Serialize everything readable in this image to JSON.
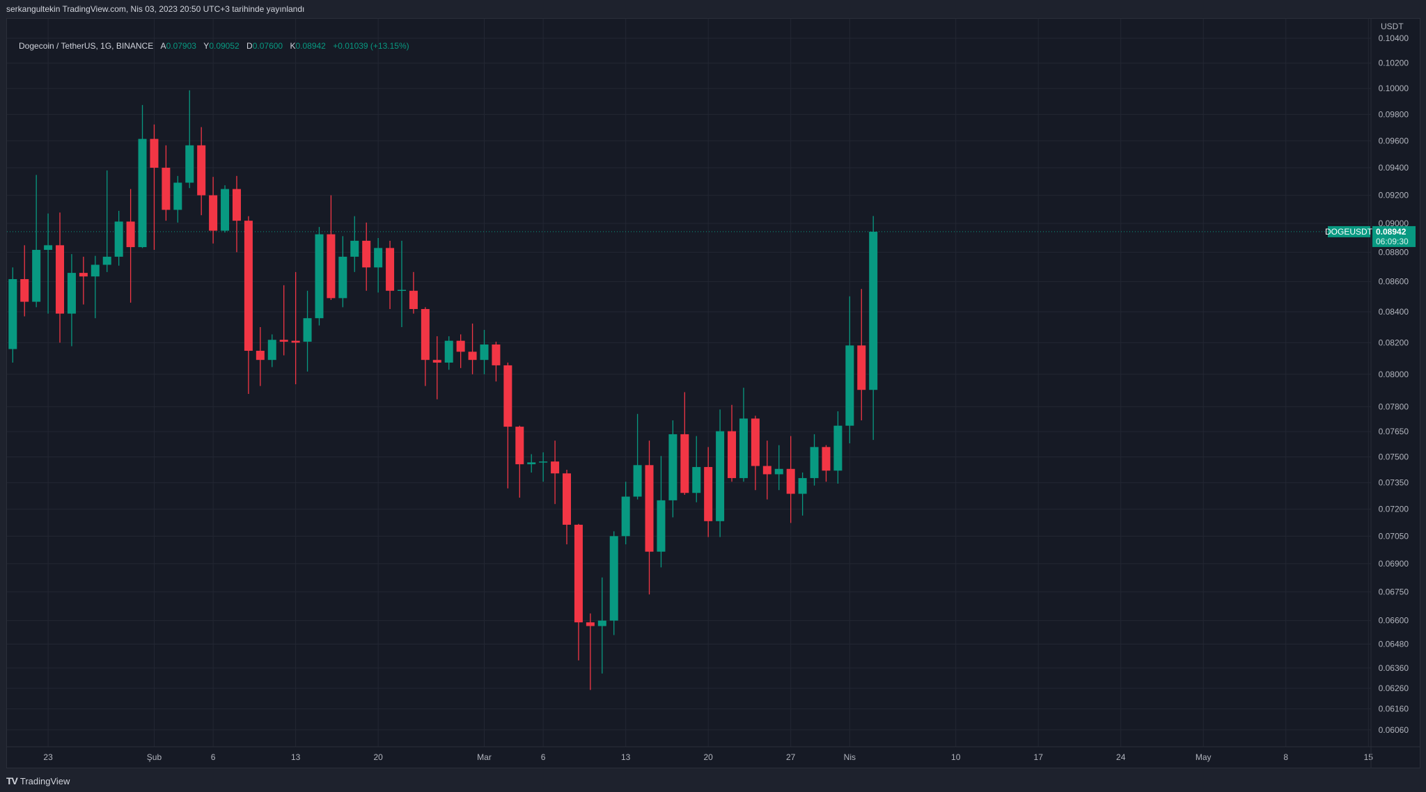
{
  "header": {
    "published": "serkangultekin TradingView.com, Nis 03, 2023 20:50 UTC+3 tarihinde yayınlandı"
  },
  "legend": {
    "symbol": "Dogecoin / TetherUS, 1G, BINANCE",
    "open_label": "A",
    "open": "0.07903",
    "high_label": "Y",
    "high": "0.09052",
    "low_label": "D",
    "low": "0.07600",
    "close_label": "K",
    "close": "0.08942",
    "change": "+0.01039 (+13.15%)"
  },
  "price_tag": {
    "symbol": "DOGEUSDT",
    "price": "0.08942",
    "countdown": "06:09:30"
  },
  "footer": {
    "logo_mark": "TV",
    "brand": "TradingView"
  },
  "colors": {
    "up": "#089981",
    "down": "#f23645",
    "background": "#161a25",
    "grid": "#232733",
    "text": "#b2b5be"
  },
  "chart_data": {
    "type": "candlestick",
    "scale": "log",
    "grid": true,
    "y_unit": "USDT",
    "ylim": [
      0.06,
      0.1045
    ],
    "y_ticks": [
      "0.10400",
      "0.10200",
      "0.10000",
      "0.09800",
      "0.09600",
      "0.09400",
      "0.09200",
      "0.09000",
      "0.08800",
      "0.08600",
      "0.08400",
      "0.08200",
      "0.08000",
      "0.07800",
      "0.07650",
      "0.07500",
      "0.07350",
      "0.07200",
      "0.07050",
      "0.06900",
      "0.06750",
      "0.06600",
      "0.06480",
      "0.06360",
      "0.06260",
      "0.06160",
      "0.06060"
    ],
    "x_ticks": [
      {
        "label": "23",
        "date": "2023-01-23"
      },
      {
        "label": "Şub",
        "date": "2023-02-01"
      },
      {
        "label": "6",
        "date": "2023-02-06"
      },
      {
        "label": "13",
        "date": "2023-02-13"
      },
      {
        "label": "20",
        "date": "2023-02-20"
      },
      {
        "label": "Mar",
        "date": "2023-03-01"
      },
      {
        "label": "6",
        "date": "2023-03-06"
      },
      {
        "label": "13",
        "date": "2023-03-13"
      },
      {
        "label": "20",
        "date": "2023-03-20"
      },
      {
        "label": "27",
        "date": "2023-03-27"
      },
      {
        "label": "Nis",
        "date": "2023-04-01"
      },
      {
        "label": "10",
        "date": "2023-04-10"
      },
      {
        "label": "17",
        "date": "2023-04-17"
      },
      {
        "label": "24",
        "date": "2023-04-24"
      },
      {
        "label": "May",
        "date": "2023-05-01"
      },
      {
        "label": "8",
        "date": "2023-05-08"
      },
      {
        "label": "15",
        "date": "2023-05-15"
      }
    ],
    "x_end": "2023-05-15",
    "columns": [
      "date",
      "open",
      "high",
      "low",
      "close"
    ],
    "ohlc": [
      [
        "2023-01-20",
        0.08159,
        0.08696,
        0.08073,
        0.08617
      ],
      [
        "2023-01-21",
        0.08617,
        0.08848,
        0.0837,
        0.08466
      ],
      [
        "2023-01-22",
        0.08466,
        0.09347,
        0.0843,
        0.08816
      ],
      [
        "2023-01-23",
        0.08816,
        0.0907,
        0.08388,
        0.08848
      ],
      [
        "2023-01-24",
        0.08848,
        0.09077,
        0.082,
        0.08388
      ],
      [
        "2023-01-25",
        0.08388,
        0.08787,
        0.08177,
        0.08659
      ],
      [
        "2023-01-26",
        0.08659,
        0.08769,
        0.08448,
        0.08635
      ],
      [
        "2023-01-27",
        0.08635,
        0.08775,
        0.08358,
        0.08714
      ],
      [
        "2023-01-28",
        0.08714,
        0.0938,
        0.08665,
        0.08769
      ],
      [
        "2023-01-29",
        0.08769,
        0.09089,
        0.08708,
        0.09013
      ],
      [
        "2023-01-30",
        0.09013,
        0.09245,
        0.0846,
        0.08835
      ],
      [
        "2023-01-31",
        0.08835,
        0.09872,
        0.08829,
        0.09614
      ],
      [
        "2023-02-01",
        0.09614,
        0.09723,
        0.08816,
        0.094
      ],
      [
        "2023-02-02",
        0.094,
        0.09566,
        0.09019,
        0.09096
      ],
      [
        "2023-02-03",
        0.09096,
        0.0934,
        0.09006,
        0.09291
      ],
      [
        "2023-02-04",
        0.09291,
        0.09986,
        0.09252,
        0.09566
      ],
      [
        "2023-02-05",
        0.09566,
        0.09703,
        0.09058,
        0.092
      ],
      [
        "2023-02-06",
        0.092,
        0.09333,
        0.0886,
        0.08949
      ],
      [
        "2023-02-07",
        0.08949,
        0.09272,
        0.08936,
        0.09245
      ],
      [
        "2023-02-08",
        0.09245,
        0.0934,
        0.088,
        0.09019
      ],
      [
        "2023-02-09",
        0.09019,
        0.09051,
        0.07878,
        0.08148
      ],
      [
        "2023-02-10",
        0.08148,
        0.083,
        0.07927,
        0.0809
      ],
      [
        "2023-02-11",
        0.0809,
        0.08253,
        0.08045,
        0.08218
      ],
      [
        "2023-02-12",
        0.08218,
        0.08576,
        0.08119,
        0.08206
      ],
      [
        "2023-02-13",
        0.08212,
        0.08665,
        0.07938,
        0.082
      ],
      [
        "2023-02-14",
        0.08206,
        0.08539,
        0.08017,
        0.08358
      ],
      [
        "2023-02-15",
        0.08358,
        0.08975,
        0.08311,
        0.08924
      ],
      [
        "2023-02-16",
        0.08924,
        0.092,
        0.08478,
        0.0849
      ],
      [
        "2023-02-17",
        0.0849,
        0.08911,
        0.0843,
        0.08769
      ],
      [
        "2023-02-18",
        0.08769,
        0.09051,
        0.08665,
        0.08879
      ],
      [
        "2023-02-19",
        0.08879,
        0.09006,
        0.08539,
        0.08696
      ],
      [
        "2023-02-20",
        0.08696,
        0.08898,
        0.08527,
        0.08829
      ],
      [
        "2023-02-21",
        0.08829,
        0.08879,
        0.08418,
        0.08539
      ],
      [
        "2023-02-22",
        0.08539,
        0.08879,
        0.083,
        0.08545
      ],
      [
        "2023-02-23",
        0.08539,
        0.08665,
        0.08388,
        0.08418
      ],
      [
        "2023-02-24",
        0.08418,
        0.0843,
        0.07927,
        0.0809
      ],
      [
        "2023-02-25",
        0.0809,
        0.08241,
        0.07845,
        0.08073
      ],
      [
        "2023-02-26",
        0.08073,
        0.08241,
        0.08028,
        0.08212
      ],
      [
        "2023-02-27",
        0.08212,
        0.08253,
        0.08039,
        0.08142
      ],
      [
        "2023-02-28",
        0.08142,
        0.08323,
        0.08,
        0.0809
      ],
      [
        "2023-03-01",
        0.0809,
        0.08282,
        0.08,
        0.08188
      ],
      [
        "2023-03-02",
        0.08188,
        0.08206,
        0.07955,
        0.08056
      ],
      [
        "2023-03-03",
        0.08056,
        0.08073,
        0.07318,
        0.07679
      ],
      [
        "2023-03-04",
        0.07679,
        0.07685,
        0.07265,
        0.07457
      ],
      [
        "2023-03-05",
        0.07457,
        0.07516,
        0.07409,
        0.07468
      ],
      [
        "2023-03-06",
        0.07468,
        0.07527,
        0.07356,
        0.07473
      ],
      [
        "2023-03-07",
        0.07473,
        0.07596,
        0.07229,
        0.07404
      ],
      [
        "2023-03-08",
        0.07404,
        0.07425,
        0.07005,
        0.07113
      ],
      [
        "2023-03-09",
        0.07113,
        0.07118,
        0.06398,
        0.06591
      ],
      [
        "2023-03-10",
        0.06591,
        0.06637,
        0.06252,
        0.06572
      ],
      [
        "2023-03-11",
        0.06572,
        0.06826,
        0.06333,
        0.066
      ],
      [
        "2023-03-12",
        0.066,
        0.07077,
        0.06526,
        0.0705
      ],
      [
        "2023-03-13",
        0.0705,
        0.07356,
        0.07005,
        0.07271
      ],
      [
        "2023-03-14",
        0.07271,
        0.07756,
        0.07255,
        0.07452
      ],
      [
        "2023-03-15",
        0.07452,
        0.07596,
        0.06736,
        0.06965
      ],
      [
        "2023-03-16",
        0.06965,
        0.07505,
        0.0688,
        0.0725
      ],
      [
        "2023-03-17",
        0.0725,
        0.07717,
        0.07154,
        0.07634
      ],
      [
        "2023-03-18",
        0.07634,
        0.07889,
        0.07281,
        0.07292
      ],
      [
        "2023-03-19",
        0.07292,
        0.07623,
        0.07239,
        0.07441
      ],
      [
        "2023-03-20",
        0.07441,
        0.07558,
        0.07045,
        0.07133
      ],
      [
        "2023-03-21",
        0.07133,
        0.07783,
        0.07045,
        0.07652
      ],
      [
        "2023-03-22",
        0.07652,
        0.07811,
        0.07356,
        0.07377
      ],
      [
        "2023-03-23",
        0.07377,
        0.07916,
        0.07356,
        0.07728
      ],
      [
        "2023-03-24",
        0.07728,
        0.07745,
        0.07308,
        0.07447
      ],
      [
        "2023-03-25",
        0.07447,
        0.07596,
        0.07255,
        0.07399
      ],
      [
        "2023-03-26",
        0.07399,
        0.07569,
        0.07308,
        0.0743
      ],
      [
        "2023-03-27",
        0.0743,
        0.07623,
        0.07123,
        0.07287
      ],
      [
        "2023-03-28",
        0.07287,
        0.07409,
        0.07164,
        0.07377
      ],
      [
        "2023-03-29",
        0.07377,
        0.07634,
        0.07334,
        0.07558
      ],
      [
        "2023-03-30",
        0.07558,
        0.07569,
        0.07356,
        0.0742
      ],
      [
        "2023-03-31",
        0.0742,
        0.07772,
        0.07345,
        0.07685
      ],
      [
        "2023-04-01",
        0.07685,
        0.08502,
        0.0758,
        0.08182
      ],
      [
        "2023-04-02",
        0.08182,
        0.08551,
        0.07717,
        0.07903
      ],
      [
        "2023-04-03",
        0.07903,
        0.09052,
        0.076,
        0.08942
      ]
    ],
    "last_price": 0.08942
  }
}
